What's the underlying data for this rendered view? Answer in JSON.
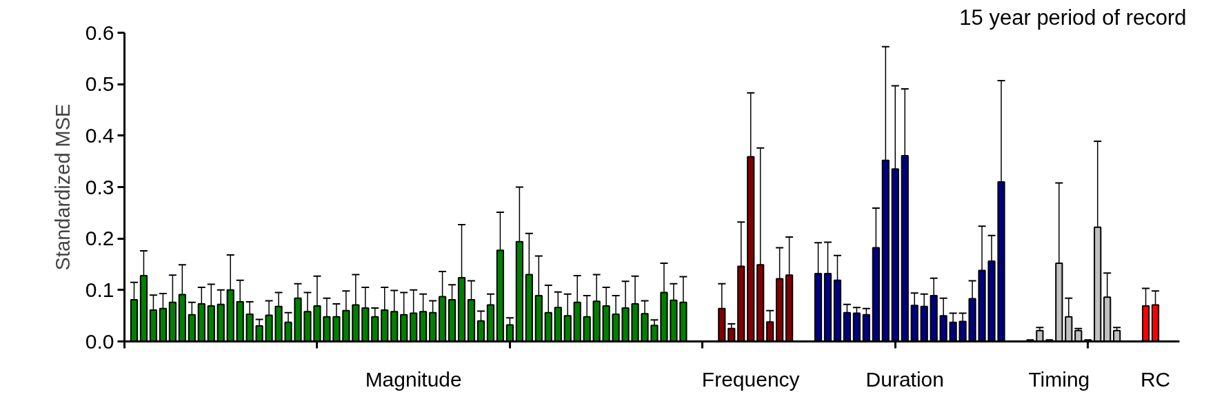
{
  "chart_data": {
    "type": "bar",
    "title": "15 year period of record",
    "ylabel": "Standardized MSE",
    "categories": [
      null,
      null,
      null,
      null,
      null,
      null,
      null,
      null,
      null,
      null,
      null,
      null,
      null,
      null,
      null,
      null,
      null,
      null,
      null,
      null,
      null,
      null,
      null,
      null,
      null,
      null,
      null,
      null,
      null,
      "Magnitude",
      null,
      null,
      null,
      null,
      null,
      null,
      null,
      null,
      null,
      null,
      null,
      null,
      null,
      null,
      null,
      null,
      null,
      null,
      null,
      null,
      null,
      null,
      null,
      null,
      null,
      null,
      null,
      null,
      null,
      null,
      null,
      null,
      null,
      null,
      "Frequency",
      null,
      null,
      null,
      null,
      null,
      null,
      null,
      null,
      null,
      null,
      null,
      null,
      null,
      null,
      null,
      "Duration",
      null,
      null,
      null,
      null,
      null,
      null,
      null,
      null,
      null,
      null,
      null,
      null,
      null,
      null,
      null,
      "Timing",
      null,
      null,
      null,
      null,
      null,
      null,
      null,
      null,
      null,
      "RC"
    ],
    "ylim": [
      0,
      0.6
    ],
    "yticks": [
      {
        "value": 0,
        "label": "0.0"
      },
      {
        "value": 0.1,
        "label": "0.1"
      },
      {
        "value": 0.2,
        "label": "0.2"
      },
      {
        "value": 0.3,
        "label": "0.3"
      },
      {
        "value": 0.4,
        "label": "0.4"
      },
      {
        "value": 0.5,
        "label": "0.5"
      },
      {
        "value": 0.6,
        "label": "0.6"
      }
    ],
    "grid": false,
    "values": [
      0.081,
      0.128,
      0.061,
      0.064,
      0.076,
      0.091,
      0.052,
      0.073,
      0.069,
      0.072,
      0.1,
      0.077,
      0.053,
      0.03,
      0.051,
      0.068,
      0.037,
      0.084,
      0.058,
      0.069,
      0.048,
      0.048,
      0.06,
      0.071,
      0.065,
      0.048,
      0.061,
      0.058,
      0.052,
      0.055,
      0.058,
      0.056,
      0.087,
      0.081,
      0.124,
      0.081,
      0.04,
      0.071,
      0.177,
      0.032,
      0.194,
      0.13,
      0.089,
      0.056,
      0.066,
      0.05,
      0.076,
      0.048,
      0.078,
      0.069,
      0.053,
      0.065,
      0.073,
      0.054,
      0.031,
      0.095,
      0.08,
      0.076,
      null,
      null,
      null,
      0.064,
      0.025,
      0.146,
      0.359,
      0.149,
      0.038,
      0.122,
      0.129,
      null,
      null,
      0.132,
      0.132,
      0.119,
      0.056,
      0.055,
      0.052,
      0.182,
      0.352,
      0.335,
      0.361,
      0.07,
      0.068,
      0.089,
      0.05,
      0.037,
      0.039,
      0.083,
      0.138,
      0.156,
      0.31,
      null,
      null,
      0.003,
      0.021,
      0.003,
      0.152,
      0.048,
      0.021,
      0.003,
      0.222,
      0.086,
      0.021,
      null,
      null,
      0.069,
      0.071
    ],
    "colors": [
      "#008000",
      "#008000",
      "#008000",
      "#008000",
      "#008000",
      "#008000",
      "#008000",
      "#008000",
      "#008000",
      "#008000",
      "#008000",
      "#008000",
      "#008000",
      "#008000",
      "#008000",
      "#008000",
      "#008000",
      "#008000",
      "#008000",
      "#008000",
      "#008000",
      "#008000",
      "#008000",
      "#008000",
      "#008000",
      "#008000",
      "#008000",
      "#008000",
      "#008000",
      "#008000",
      "#008000",
      "#008000",
      "#008000",
      "#008000",
      "#008000",
      "#008000",
      "#008000",
      "#008000",
      "#008000",
      "#008000",
      "#008000",
      "#008000",
      "#008000",
      "#008000",
      "#008000",
      "#008000",
      "#008000",
      "#008000",
      "#008000",
      "#008000",
      "#008000",
      "#008000",
      "#008000",
      "#008000",
      "#008000",
      "#008000",
      "#008000",
      "#008000",
      null,
      null,
      null,
      "#800000",
      "#800000",
      "#800000",
      "#800000",
      "#800000",
      "#800000",
      "#800000",
      "#800000",
      null,
      null,
      "#000080",
      "#000080",
      "#000080",
      "#000080",
      "#000080",
      "#000080",
      "#000080",
      "#000080",
      "#000080",
      "#000080",
      "#000080",
      "#000080",
      "#000080",
      "#000080",
      "#000080",
      "#000080",
      "#000080",
      "#000080",
      "#000080",
      "#000080",
      null,
      null,
      "#c0c0c0",
      "#c0c0c0",
      "#c0c0c0",
      "#c0c0c0",
      "#c0c0c0",
      "#c0c0c0",
      "#c0c0c0",
      "#c0c0c0",
      "#c0c0c0",
      "#c0c0c0",
      null,
      null,
      "#ff0000",
      "#ff0000"
    ],
    "errors": [
      [
        0.081,
        0.115
      ],
      [
        0.128,
        0.176
      ],
      [
        0.061,
        0.09
      ],
      [
        0.064,
        0.093
      ],
      [
        0.076,
        0.129
      ],
      [
        0.091,
        0.149
      ],
      [
        0.052,
        0.076
      ],
      [
        0.073,
        0.105
      ],
      [
        0.069,
        0.111
      ],
      [
        0.072,
        0.1
      ],
      [
        0.1,
        0.168
      ],
      [
        0.077,
        0.119
      ],
      [
        0.053,
        0.077
      ],
      [
        0.03,
        0.043
      ],
      [
        0.051,
        0.079
      ],
      [
        0.068,
        0.095
      ],
      [
        0.037,
        0.056
      ],
      [
        0.084,
        0.112
      ],
      [
        0.058,
        0.095
      ],
      [
        0.069,
        0.127
      ],
      [
        0.048,
        0.084
      ],
      [
        0.048,
        0.073
      ],
      [
        0.06,
        0.098
      ],
      [
        0.071,
        0.13
      ],
      [
        0.065,
        0.105
      ],
      [
        0.048,
        0.065
      ],
      [
        0.061,
        0.105
      ],
      [
        0.058,
        0.099
      ],
      [
        0.052,
        0.095
      ],
      [
        0.055,
        0.1
      ],
      [
        0.058,
        0.092
      ],
      [
        0.056,
        0.079
      ],
      [
        0.087,
        0.136
      ],
      [
        0.081,
        0.11
      ],
      [
        0.124,
        0.227
      ],
      [
        0.081,
        0.118
      ],
      [
        0.04,
        0.059
      ],
      [
        0.071,
        0.092
      ],
      [
        0.177,
        0.251
      ],
      [
        0.032,
        0.046
      ],
      [
        0.194,
        0.3
      ],
      [
        0.13,
        0.21
      ],
      [
        0.089,
        0.166
      ],
      [
        0.056,
        0.109
      ],
      [
        0.066,
        0.096
      ],
      [
        0.05,
        0.092
      ],
      [
        0.076,
        0.128
      ],
      [
        0.048,
        0.089
      ],
      [
        0.078,
        0.13
      ],
      [
        0.069,
        0.105
      ],
      [
        0.053,
        0.089
      ],
      [
        0.065,
        0.117
      ],
      [
        0.073,
        0.127
      ],
      [
        0.054,
        0.079
      ],
      [
        0.031,
        0.042
      ],
      [
        0.095,
        0.152
      ],
      [
        0.08,
        0.112
      ],
      [
        0.076,
        0.126
      ],
      null,
      null,
      null,
      [
        0.064,
        0.112
      ],
      [
        0.025,
        0.034
      ],
      [
        0.146,
        0.232
      ],
      [
        0.359,
        0.483
      ],
      [
        0.149,
        0.376
      ],
      [
        0.038,
        0.06
      ],
      [
        0.122,
        0.182
      ],
      [
        0.129,
        0.203
      ],
      null,
      null,
      [
        0.132,
        0.192
      ],
      [
        0.132,
        0.193
      ],
      [
        0.119,
        0.167
      ],
      [
        0.056,
        0.072
      ],
      [
        0.055,
        0.066
      ],
      [
        0.052,
        0.064
      ],
      [
        0.182,
        0.259
      ],
      [
        0.352,
        0.573
      ],
      [
        0.335,
        0.497
      ],
      [
        0.361,
        0.491
      ],
      [
        0.07,
        0.094
      ],
      [
        0.068,
        0.092
      ],
      [
        0.089,
        0.123
      ],
      [
        0.05,
        0.084
      ],
      [
        0.037,
        0.055
      ],
      [
        0.039,
        0.055
      ],
      [
        0.083,
        0.118
      ],
      [
        0.138,
        0.224
      ],
      [
        0.156,
        0.206
      ],
      [
        0.31,
        0.507
      ],
      null,
      null,
      null,
      [
        0.021,
        0.027
      ],
      null,
      [
        0.152,
        0.308
      ],
      [
        0.048,
        0.084
      ],
      [
        0.021,
        0.025
      ],
      null,
      [
        0.222,
        0.389
      ],
      [
        0.086,
        0.133
      ],
      [
        0.021,
        0.027
      ],
      null,
      null,
      [
        0.069,
        0.103
      ],
      [
        0.071,
        0.098
      ]
    ]
  }
}
